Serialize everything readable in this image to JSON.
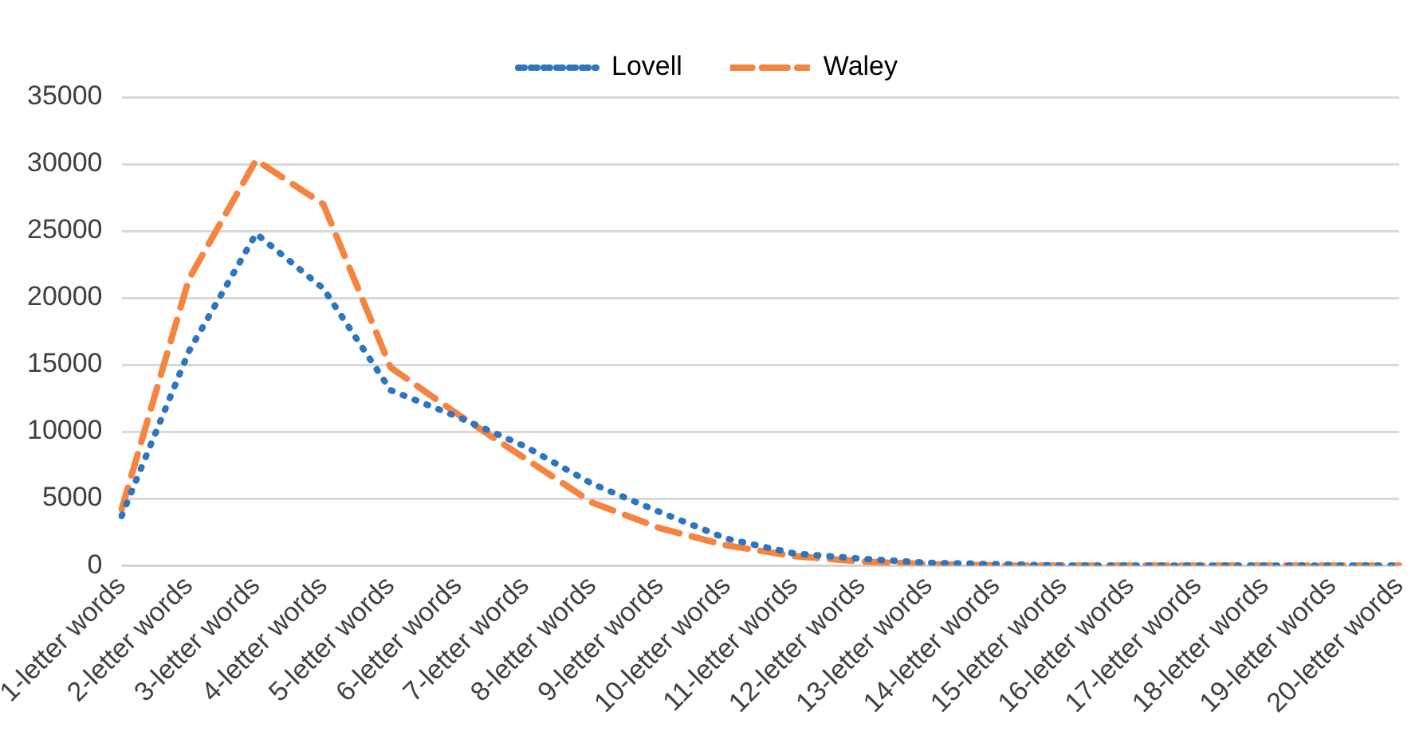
{
  "chart_data": {
    "type": "line",
    "categories": [
      "1-letter words",
      "2-letter words",
      "3-letter words",
      "4-letter words",
      "5-letter words",
      "6-letter words",
      "7-letter words",
      "8-letter words",
      "9-letter words",
      "10-letter words",
      "11-letter words",
      "12-letter words",
      "13-letter words",
      "14-letter words",
      "15-letter words",
      "16-letter words",
      "17-letter words",
      "18-letter words",
      "19-letter words",
      "20-letter words"
    ],
    "series": [
      {
        "name": "Lovell",
        "color": "#2e75c0",
        "line_style": "dotted",
        "values": [
          3700,
          16000,
          24800,
          20700,
          13100,
          11100,
          8900,
          6100,
          4000,
          2000,
          900,
          500,
          200,
          100,
          0,
          0,
          0,
          0,
          0,
          0
        ]
      },
      {
        "name": "Waley",
        "color": "#f4843f",
        "line_style": "dashed",
        "values": [
          4200,
          21400,
          30300,
          27000,
          14800,
          11300,
          8000,
          4700,
          2800,
          1500,
          700,
          300,
          100,
          0,
          0,
          0,
          0,
          0,
          0,
          0
        ]
      }
    ],
    "ylim": [
      0,
      35000
    ],
    "yticks": [
      0,
      5000,
      10000,
      15000,
      20000,
      25000,
      30000,
      35000
    ],
    "grid": "y",
    "legend": "top",
    "marker": "none"
  }
}
